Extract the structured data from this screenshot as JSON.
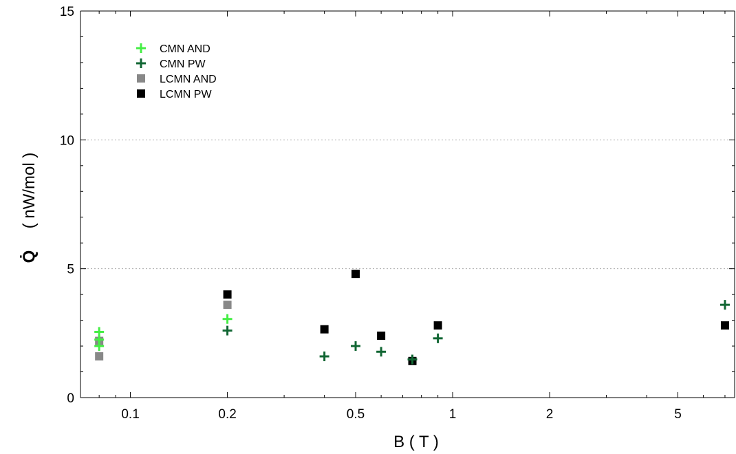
{
  "chart_data": {
    "type": "scatter",
    "title": "",
    "xlabel": "B ( T )",
    "ylabel": "( nW/mol )",
    "ylabel_symbol": "Q̇",
    "x_scale": "log",
    "xlim": [
      0.07,
      7.5
    ],
    "ylim": [
      0,
      15
    ],
    "x_ticks": [
      0.1,
      0.2,
      0.5,
      1,
      2,
      5
    ],
    "x_tick_labels": [
      "0.1",
      "0.2",
      "0.5",
      "1",
      "2",
      "5"
    ],
    "y_ticks": [
      0,
      5,
      10,
      15
    ],
    "y_tick_labels": [
      "0",
      "5",
      "10",
      "15"
    ],
    "grid": "horizontal dotted at 5 and 10",
    "legend_position": "top-left",
    "series": [
      {
        "name": "CMN AND",
        "marker": "plus",
        "color": "#44ee44",
        "points": [
          [
            0.08,
            2.55
          ],
          [
            0.08,
            2.25
          ],
          [
            0.08,
            2.0
          ],
          [
            0.2,
            3.05
          ]
        ]
      },
      {
        "name": "CMN PW",
        "marker": "plus",
        "color": "#116633",
        "points": [
          [
            0.2,
            2.6
          ],
          [
            0.4,
            1.6
          ],
          [
            0.5,
            2.0
          ],
          [
            0.6,
            1.78
          ],
          [
            0.75,
            1.48
          ],
          [
            0.9,
            2.3
          ],
          [
            7,
            3.6
          ]
        ]
      },
      {
        "name": "LCMN AND",
        "marker": "square",
        "color": "#888888",
        "points": [
          [
            0.08,
            2.2
          ],
          [
            0.08,
            1.6
          ],
          [
            0.2,
            3.6
          ]
        ]
      },
      {
        "name": "LCMN PW",
        "marker": "square",
        "color": "#000000",
        "points": [
          [
            0.2,
            4.0
          ],
          [
            0.4,
            2.65
          ],
          [
            0.5,
            4.8
          ],
          [
            0.6,
            2.4
          ],
          [
            0.75,
            1.42
          ],
          [
            0.9,
            2.8
          ],
          [
            7,
            2.8
          ]
        ]
      }
    ]
  }
}
